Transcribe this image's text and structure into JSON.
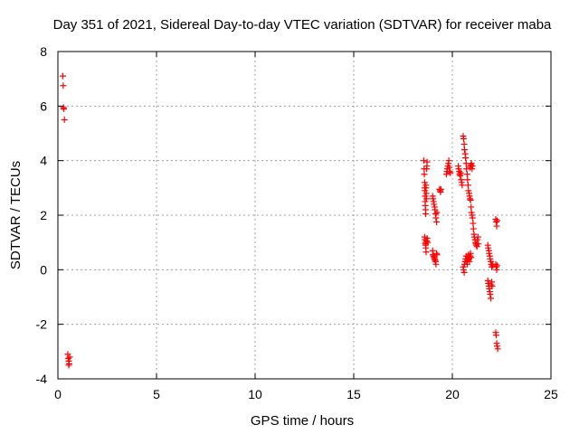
{
  "chart_data": {
    "type": "scatter",
    "title": "Day 351 of 2021, Sidereal Day-to-day VTEC variation (SDTVAR) for receiver maba",
    "xlabel": "GPS time / hours",
    "ylabel": "SDTVAR / TECUs",
    "xlim": [
      0,
      25
    ],
    "ylim": [
      -4,
      8
    ],
    "xticks": [
      0,
      5,
      10,
      15,
      20,
      25
    ],
    "yticks": [
      -4,
      -2,
      0,
      2,
      4,
      6,
      8
    ],
    "xtick_labels": [
      "0",
      "5",
      "10",
      "15",
      "20",
      "25"
    ],
    "ytick_labels": [
      "-4",
      "-2",
      "0",
      "2",
      "4",
      "6",
      "8"
    ],
    "grid": true,
    "marker": "+",
    "series": [
      {
        "name": "SDTVAR",
        "color": "#ff0000",
        "points": [
          [
            0.25,
            7.1
          ],
          [
            0.27,
            6.75
          ],
          [
            0.28,
            5.95
          ],
          [
            0.3,
            5.9
          ],
          [
            0.33,
            5.5
          ],
          [
            0.5,
            -3.1
          ],
          [
            0.52,
            -3.25
          ],
          [
            0.55,
            -3.35
          ],
          [
            0.57,
            -3.45
          ],
          [
            0.6,
            -3.2
          ],
          [
            0.55,
            -3.5
          ],
          [
            18.55,
            4.0
          ],
          [
            18.57,
            3.7
          ],
          [
            18.58,
            3.5
          ],
          [
            18.6,
            3.2
          ],
          [
            18.6,
            3.0
          ],
          [
            18.61,
            2.9
          ],
          [
            18.62,
            2.7
          ],
          [
            18.62,
            2.5
          ],
          [
            18.63,
            2.35
          ],
          [
            18.64,
            2.2
          ],
          [
            18.65,
            2.05
          ],
          [
            18.66,
            3.1
          ],
          [
            18.67,
            3.0
          ],
          [
            18.68,
            2.8
          ],
          [
            18.69,
            2.6
          ],
          [
            18.7,
            3.7
          ],
          [
            18.71,
            3.8
          ],
          [
            18.72,
            3.95
          ],
          [
            18.6,
            1.2
          ],
          [
            18.62,
            1.1
          ],
          [
            18.63,
            1.0
          ],
          [
            18.64,
            0.95
          ],
          [
            18.65,
            0.9
          ],
          [
            18.66,
            0.8
          ],
          [
            18.67,
            0.65
          ],
          [
            18.7,
            1.05
          ],
          [
            18.72,
            1.15
          ],
          [
            18.75,
            1.0
          ],
          [
            19.0,
            2.7
          ],
          [
            19.02,
            2.6
          ],
          [
            19.05,
            2.5
          ],
          [
            19.07,
            2.4
          ],
          [
            19.1,
            2.3
          ],
          [
            19.12,
            2.2
          ],
          [
            19.15,
            2.05
          ],
          [
            19.17,
            1.9
          ],
          [
            19.2,
            1.75
          ],
          [
            19.22,
            2.1
          ],
          [
            19.0,
            0.7
          ],
          [
            19.02,
            0.55
          ],
          [
            19.05,
            0.5
          ],
          [
            19.07,
            0.45
          ],
          [
            19.1,
            0.4
          ],
          [
            19.12,
            0.35
          ],
          [
            19.15,
            0.3
          ],
          [
            19.17,
            0.2
          ],
          [
            19.2,
            0.6
          ],
          [
            19.22,
            0.55
          ],
          [
            19.35,
            2.95
          ],
          [
            19.38,
            2.9
          ],
          [
            19.4,
            2.85
          ],
          [
            19.42,
            2.95
          ],
          [
            19.7,
            3.5
          ],
          [
            19.72,
            3.6
          ],
          [
            19.75,
            3.7
          ],
          [
            19.77,
            3.8
          ],
          [
            19.8,
            3.9
          ],
          [
            19.82,
            4.0
          ],
          [
            19.85,
            3.75
          ],
          [
            19.87,
            3.6
          ],
          [
            19.9,
            3.55
          ],
          [
            20.3,
            3.8
          ],
          [
            20.32,
            3.7
          ],
          [
            20.35,
            3.6
          ],
          [
            20.37,
            3.5
          ],
          [
            20.4,
            3.45
          ],
          [
            20.42,
            3.55
          ],
          [
            20.45,
            3.3
          ],
          [
            20.47,
            3.2
          ],
          [
            20.5,
            3.1
          ],
          [
            20.55,
            4.9
          ],
          [
            20.57,
            4.8
          ],
          [
            20.6,
            4.6
          ],
          [
            20.62,
            4.4
          ],
          [
            20.65,
            4.25
          ],
          [
            20.67,
            4.1
          ],
          [
            20.7,
            3.9
          ],
          [
            20.72,
            3.7
          ],
          [
            20.75,
            3.5
          ],
          [
            20.77,
            3.3
          ],
          [
            20.8,
            3.1
          ],
          [
            20.82,
            2.9
          ],
          [
            20.85,
            2.8
          ],
          [
            20.87,
            2.7
          ],
          [
            20.9,
            2.6
          ],
          [
            20.92,
            2.55
          ],
          [
            20.95,
            2.3
          ],
          [
            20.97,
            2.1
          ],
          [
            21.0,
            2.0
          ],
          [
            21.02,
            1.9
          ],
          [
            21.05,
            1.7
          ],
          [
            21.07,
            1.5
          ],
          [
            21.1,
            1.3
          ],
          [
            21.12,
            1.2
          ],
          [
            21.15,
            1.1
          ],
          [
            21.17,
            1.0
          ],
          [
            21.2,
            0.95
          ],
          [
            21.22,
            0.9
          ],
          [
            21.25,
            0.85
          ],
          [
            21.27,
            1.1
          ],
          [
            21.3,
            1.2
          ],
          [
            21.32,
            0.95
          ],
          [
            20.9,
            3.75
          ],
          [
            20.92,
            3.8
          ],
          [
            20.95,
            3.85
          ],
          [
            20.97,
            3.9
          ],
          [
            21.0,
            3.7
          ],
          [
            21.02,
            3.8
          ],
          [
            20.55,
            0.1
          ],
          [
            20.57,
            0.0
          ],
          [
            20.6,
            -0.1
          ],
          [
            20.62,
            0.2
          ],
          [
            20.65,
            0.3
          ],
          [
            20.67,
            0.4
          ],
          [
            20.7,
            0.5
          ],
          [
            20.72,
            0.3
          ],
          [
            20.75,
            0.2
          ],
          [
            20.77,
            0.35
          ],
          [
            20.8,
            0.45
          ],
          [
            20.82,
            0.55
          ],
          [
            20.85,
            0.4
          ],
          [
            20.87,
            0.3
          ],
          [
            20.9,
            0.5
          ],
          [
            20.92,
            0.6
          ],
          [
            20.95,
            0.45
          ],
          [
            21.8,
            0.9
          ],
          [
            21.82,
            0.8
          ],
          [
            21.85,
            0.7
          ],
          [
            21.87,
            0.6
          ],
          [
            21.9,
            0.5
          ],
          [
            21.92,
            0.4
          ],
          [
            21.95,
            0.3
          ],
          [
            21.97,
            0.2
          ],
          [
            22.0,
            0.1
          ],
          [
            22.02,
            0.2
          ],
          [
            22.05,
            0.15
          ],
          [
            21.8,
            -0.4
          ],
          [
            21.82,
            -0.5
          ],
          [
            21.85,
            -0.6
          ],
          [
            21.87,
            -0.7
          ],
          [
            21.9,
            -0.8
          ],
          [
            21.92,
            -0.9
          ],
          [
            21.95,
            -1.05
          ],
          [
            21.97,
            -0.55
          ],
          [
            22.0,
            -0.45
          ],
          [
            22.02,
            -0.6
          ],
          [
            22.2,
            1.85
          ],
          [
            22.22,
            1.75
          ],
          [
            22.25,
            1.6
          ],
          [
            22.27,
            1.8
          ],
          [
            22.2,
            0.2
          ],
          [
            22.22,
            0.1
          ],
          [
            22.25,
            0.0
          ],
          [
            22.27,
            0.15
          ],
          [
            22.2,
            -2.3
          ],
          [
            22.22,
            -2.4
          ],
          [
            22.25,
            -2.7
          ],
          [
            22.27,
            -2.8
          ],
          [
            22.3,
            -2.9
          ]
        ]
      }
    ]
  }
}
